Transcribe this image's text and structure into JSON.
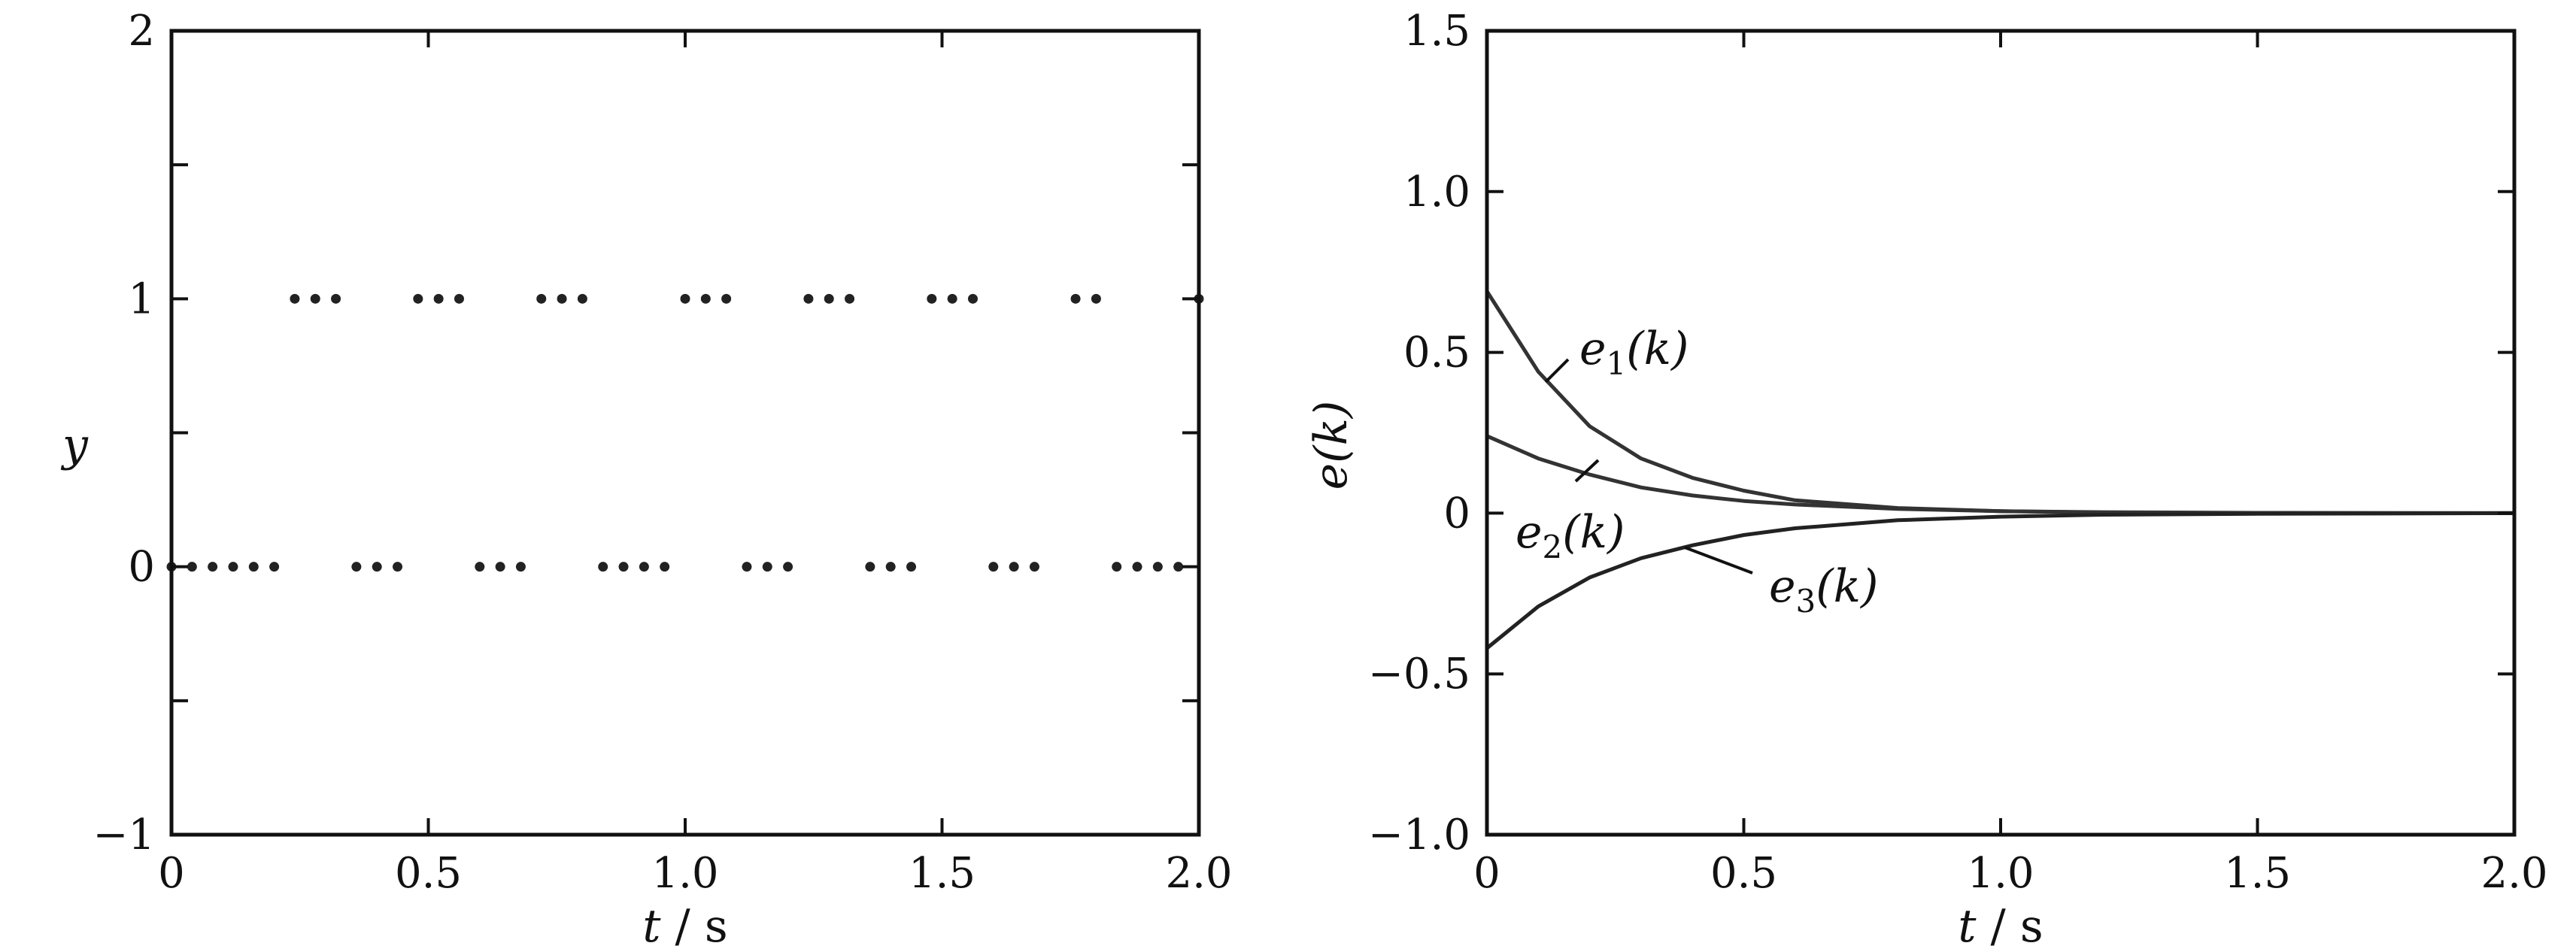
{
  "chart_data": [
    {
      "type": "scatter",
      "x_tick_labels": [
        "0",
        "0.5",
        "1.0",
        "1.5",
        "2.0"
      ],
      "y_tick_labels": [
        "−1",
        "0",
        "1",
        "2"
      ],
      "x_ticks": [
        0,
        0.5,
        1.0,
        1.5,
        2.0
      ],
      "y_ticks": [
        -1,
        0,
        1,
        2
      ],
      "xlim": [
        0,
        2.0
      ],
      "ylim": [
        -1,
        2
      ],
      "xlabel_italic": "t",
      "xlabel_rest": " / s",
      "ylabel": "y",
      "grid": false,
      "series": [
        {
          "x": [
            0,
            0.04,
            0.08,
            0.12,
            0.16,
            0.2,
            0.24,
            0.28,
            0.32,
            0.36,
            0.4,
            0.44,
            0.48,
            0.52,
            0.56,
            0.6,
            0.64,
            0.68,
            0.72,
            0.76,
            0.8,
            0.84,
            0.88,
            0.92,
            0.96,
            1.0,
            1.04,
            1.08,
            1.12,
            1.16,
            1.2,
            1.24,
            1.28,
            1.32,
            1.36,
            1.4,
            1.44,
            1.48,
            1.52,
            1.56,
            1.6,
            1.64,
            1.68,
            1.76,
            1.8,
            1.84,
            1.88,
            1.92,
            1.96,
            2.0
          ],
          "y": [
            0,
            0,
            0,
            0,
            0,
            0,
            1,
            1,
            1,
            0,
            0,
            0,
            1,
            1,
            1,
            0,
            0,
            0,
            1,
            1,
            1,
            0,
            0,
            0,
            0,
            1,
            1,
            1,
            0,
            0,
            0,
            1,
            1,
            1,
            0,
            0,
            0,
            1,
            1,
            1,
            0,
            0,
            0,
            1,
            1,
            0,
            0,
            0,
            0,
            1
          ]
        }
      ]
    },
    {
      "type": "line",
      "x_tick_labels": [
        "0",
        "0.5",
        "1.0",
        "1.5",
        "2.0"
      ],
      "y_tick_labels": [
        "−1.0",
        "−0.5",
        "0",
        "0.5",
        "1.0",
        "1.5"
      ],
      "x_ticks": [
        0,
        0.5,
        1.0,
        1.5,
        2.0
      ],
      "y_ticks": [
        -1.0,
        -0.5,
        0,
        0.5,
        1.0,
        1.5
      ],
      "xlim": [
        0,
        2.0
      ],
      "ylim": [
        -1.0,
        1.5
      ],
      "xlabel_italic": "t",
      "xlabel_rest": " / s",
      "ylabel": "e(k)",
      "grid": false,
      "series": [
        {
          "name_base": "e",
          "name_sub": "1",
          "name_tail": "(k)",
          "x": [
            0,
            0.1,
            0.2,
            0.3,
            0.4,
            0.5,
            0.6,
            0.8,
            1.0,
            1.2,
            1.5,
            2.0
          ],
          "y": [
            0.69,
            0.44,
            0.27,
            0.17,
            0.11,
            0.07,
            0.04,
            0.016,
            0.006,
            0.002,
            0,
            0
          ]
        },
        {
          "name_base": "e",
          "name_sub": "2",
          "name_tail": "(k)",
          "x": [
            0,
            0.1,
            0.2,
            0.3,
            0.4,
            0.5,
            0.6,
            0.8,
            1.0,
            1.2,
            1.5,
            2.0
          ],
          "y": [
            0.24,
            0.17,
            0.12,
            0.08,
            0.055,
            0.038,
            0.027,
            0.013,
            0.006,
            0.003,
            0.001,
            0
          ]
        },
        {
          "name_base": "e",
          "name_sub": "3",
          "name_tail": "(k)",
          "x": [
            0,
            0.1,
            0.2,
            0.3,
            0.4,
            0.5,
            0.6,
            0.8,
            1.0,
            1.2,
            1.5,
            2.0
          ],
          "y": [
            -0.42,
            -0.29,
            -0.2,
            -0.14,
            -0.1,
            -0.068,
            -0.047,
            -0.022,
            -0.011,
            -0.005,
            -0.002,
            0
          ]
        }
      ]
    }
  ]
}
